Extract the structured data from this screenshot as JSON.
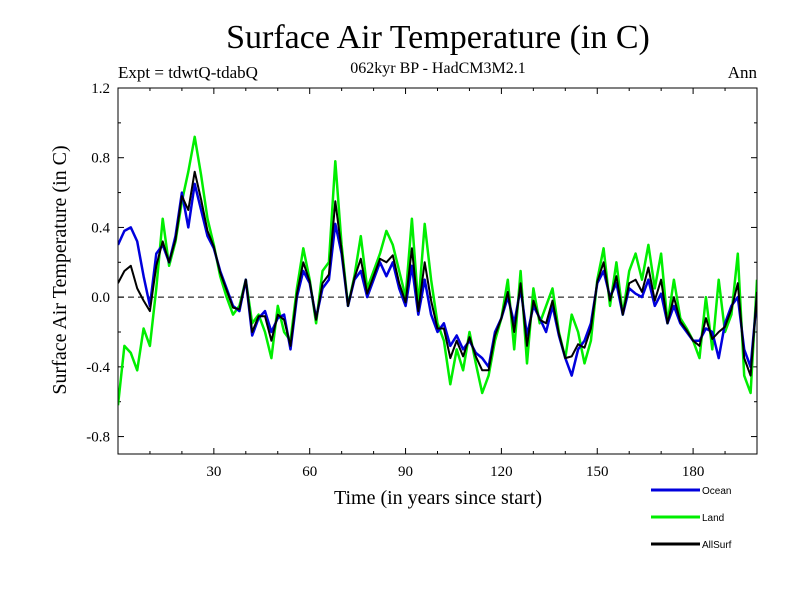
{
  "chart_data": {
    "type": "line",
    "title": "Surface Air Temperature (in C)",
    "subtitle": "062kyr BP - HadCM3M2.1",
    "left_label": "Expt = tdwtQ-tdabQ",
    "right_label": "Ann",
    "xlabel": "Time (in years since start)",
    "ylabel": "Surface Air Temperature (in C)",
    "xlim": [
      0,
      200
    ],
    "ylim": [
      -0.9,
      1.2
    ],
    "xticks": [
      30,
      60,
      90,
      120,
      150,
      180
    ],
    "xtick_labels": [
      "30",
      "60",
      "90",
      "120",
      "150",
      "180"
    ],
    "yticks": [
      -0.8,
      -0.4,
      0.0,
      0.4,
      0.8,
      1.2
    ],
    "ytick_labels": [
      "-0.8",
      "-0.4",
      "0.0",
      "0.4",
      "0.8",
      "1.2"
    ],
    "reference_line": 0.0,
    "legend_placement": "bottom-right",
    "series": [
      {
        "name": "Land",
        "color": "#00ee00",
        "x": [
          0,
          2,
          4,
          6,
          8,
          10,
          12,
          14,
          16,
          18,
          20,
          22,
          24,
          26,
          28,
          30,
          32,
          34,
          36,
          38,
          40,
          42,
          44,
          46,
          48,
          50,
          52,
          54,
          56,
          58,
          60,
          62,
          64,
          66,
          68,
          70,
          72,
          74,
          76,
          78,
          80,
          82,
          84,
          86,
          88,
          90,
          92,
          94,
          96,
          98,
          100,
          102,
          104,
          106,
          108,
          110,
          112,
          114,
          116,
          118,
          120,
          122,
          124,
          126,
          128,
          130,
          132,
          134,
          136,
          138,
          140,
          142,
          144,
          146,
          148,
          150,
          152,
          154,
          156,
          158,
          160,
          162,
          164,
          166,
          168,
          170,
          172,
          174,
          176,
          178,
          180,
          182,
          184,
          186,
          188,
          190,
          192,
          194,
          196,
          198,
          200
        ],
        "values": [
          -0.62,
          -0.28,
          -0.32,
          -0.42,
          -0.18,
          -0.28,
          0.05,
          0.45,
          0.18,
          0.32,
          0.55,
          0.72,
          0.92,
          0.7,
          0.45,
          0.3,
          0.12,
          0.0,
          -0.1,
          -0.05,
          0.1,
          -0.15,
          -0.1,
          -0.2,
          -0.35,
          -0.05,
          -0.2,
          -0.25,
          0.05,
          0.28,
          0.1,
          -0.15,
          0.15,
          0.2,
          0.78,
          0.3,
          -0.05,
          0.12,
          0.35,
          0.05,
          0.15,
          0.25,
          0.38,
          0.3,
          0.15,
          0.0,
          0.45,
          -0.05,
          0.42,
          0.1,
          -0.15,
          -0.25,
          -0.5,
          -0.3,
          -0.42,
          -0.2,
          -0.38,
          -0.55,
          -0.45,
          -0.25,
          -0.12,
          0.1,
          -0.3,
          0.15,
          -0.38,
          0.05,
          -0.15,
          -0.05,
          0.05,
          -0.2,
          -0.35,
          -0.1,
          -0.2,
          -0.38,
          -0.25,
          0.1,
          0.28,
          -0.05,
          0.2,
          -0.1,
          0.15,
          0.25,
          0.1,
          0.3,
          0.05,
          0.25,
          -0.15,
          0.1,
          -0.12,
          -0.18,
          -0.25,
          -0.35,
          0.0,
          -0.3,
          0.1,
          -0.2,
          -0.1,
          0.25,
          -0.45,
          -0.55,
          0.1
        ]
      },
      {
        "name": "Ocean",
        "color": "#0000dd",
        "x": [
          0,
          2,
          4,
          6,
          8,
          10,
          12,
          14,
          16,
          18,
          20,
          22,
          24,
          26,
          28,
          30,
          32,
          34,
          36,
          38,
          40,
          42,
          44,
          46,
          48,
          50,
          52,
          54,
          56,
          58,
          60,
          62,
          64,
          66,
          68,
          70,
          72,
          74,
          76,
          78,
          80,
          82,
          84,
          86,
          88,
          90,
          92,
          94,
          96,
          98,
          100,
          102,
          104,
          106,
          108,
          110,
          112,
          114,
          116,
          118,
          120,
          122,
          124,
          126,
          128,
          130,
          132,
          134,
          136,
          138,
          140,
          142,
          144,
          146,
          148,
          150,
          152,
          154,
          156,
          158,
          160,
          162,
          164,
          166,
          168,
          170,
          172,
          174,
          176,
          178,
          180,
          182,
          184,
          186,
          188,
          190,
          192,
          194,
          196,
          198,
          200
        ],
        "values": [
          0.3,
          0.38,
          0.4,
          0.32,
          0.12,
          -0.05,
          0.25,
          0.3,
          0.2,
          0.35,
          0.6,
          0.4,
          0.65,
          0.5,
          0.35,
          0.28,
          0.15,
          0.05,
          -0.05,
          -0.08,
          0.1,
          -0.22,
          -0.12,
          -0.08,
          -0.2,
          -0.12,
          -0.1,
          -0.3,
          0.0,
          0.15,
          0.08,
          -0.12,
          0.05,
          0.1,
          0.42,
          0.25,
          -0.05,
          0.1,
          0.15,
          0.0,
          0.1,
          0.2,
          0.12,
          0.2,
          0.05,
          -0.05,
          0.18,
          -0.1,
          0.1,
          -0.1,
          -0.2,
          -0.15,
          -0.28,
          -0.22,
          -0.3,
          -0.25,
          -0.32,
          -0.35,
          -0.4,
          -0.2,
          -0.12,
          0.0,
          -0.15,
          0.05,
          -0.22,
          -0.05,
          -0.12,
          -0.2,
          -0.05,
          -0.22,
          -0.35,
          -0.45,
          -0.3,
          -0.25,
          -0.15,
          0.08,
          0.15,
          0.0,
          0.08,
          -0.1,
          0.05,
          0.02,
          0.0,
          0.1,
          -0.05,
          0.02,
          -0.15,
          -0.05,
          -0.15,
          -0.2,
          -0.25,
          -0.25,
          -0.18,
          -0.2,
          -0.35,
          -0.15,
          -0.05,
          0.0,
          -0.3,
          -0.4,
          0.0
        ]
      },
      {
        "name": "AllSurf",
        "color": "#000000",
        "x": [
          0,
          2,
          4,
          6,
          8,
          10,
          12,
          14,
          16,
          18,
          20,
          22,
          24,
          26,
          28,
          30,
          32,
          34,
          36,
          38,
          40,
          42,
          44,
          46,
          48,
          50,
          52,
          54,
          56,
          58,
          60,
          62,
          64,
          66,
          68,
          70,
          72,
          74,
          76,
          78,
          80,
          82,
          84,
          86,
          88,
          90,
          92,
          94,
          96,
          98,
          100,
          102,
          104,
          106,
          108,
          110,
          112,
          114,
          116,
          118,
          120,
          122,
          124,
          126,
          128,
          130,
          132,
          134,
          136,
          138,
          140,
          142,
          144,
          146,
          148,
          150,
          152,
          154,
          156,
          158,
          160,
          162,
          164,
          166,
          168,
          170,
          172,
          174,
          176,
          178,
          180,
          182,
          184,
          186,
          188,
          190,
          192,
          194,
          196,
          198,
          200
        ],
        "values": [
          0.08,
          0.15,
          0.18,
          0.05,
          -0.02,
          -0.08,
          0.18,
          0.32,
          0.2,
          0.33,
          0.58,
          0.5,
          0.72,
          0.56,
          0.38,
          0.29,
          0.14,
          0.04,
          -0.06,
          -0.07,
          0.1,
          -0.2,
          -0.11,
          -0.11,
          -0.25,
          -0.1,
          -0.13,
          -0.28,
          0.02,
          0.2,
          0.09,
          -0.13,
          0.08,
          0.13,
          0.55,
          0.27,
          -0.05,
          0.11,
          0.22,
          0.02,
          0.12,
          0.22,
          0.2,
          0.24,
          0.08,
          -0.03,
          0.28,
          -0.08,
          0.2,
          -0.02,
          -0.18,
          -0.18,
          -0.35,
          -0.25,
          -0.34,
          -0.23,
          -0.34,
          -0.42,
          -0.42,
          -0.22,
          -0.12,
          0.03,
          -0.2,
          0.08,
          -0.28,
          -0.02,
          -0.13,
          -0.15,
          -0.02,
          -0.21,
          -0.35,
          -0.34,
          -0.27,
          -0.29,
          -0.18,
          0.09,
          0.2,
          -0.02,
          0.12,
          -0.1,
          0.08,
          0.1,
          0.03,
          0.17,
          -0.02,
          0.1,
          -0.15,
          0.0,
          -0.14,
          -0.19,
          -0.25,
          -0.28,
          -0.12,
          -0.24,
          -0.2,
          -0.17,
          -0.07,
          0.08,
          -0.35,
          -0.45,
          0.03
        ]
      }
    ]
  },
  "legend": {
    "items": [
      {
        "label": "Ocean",
        "color": "#0000dd"
      },
      {
        "label": "Land",
        "color": "#00ee00"
      },
      {
        "label": "AllSurf",
        "color": "#000000"
      }
    ]
  }
}
